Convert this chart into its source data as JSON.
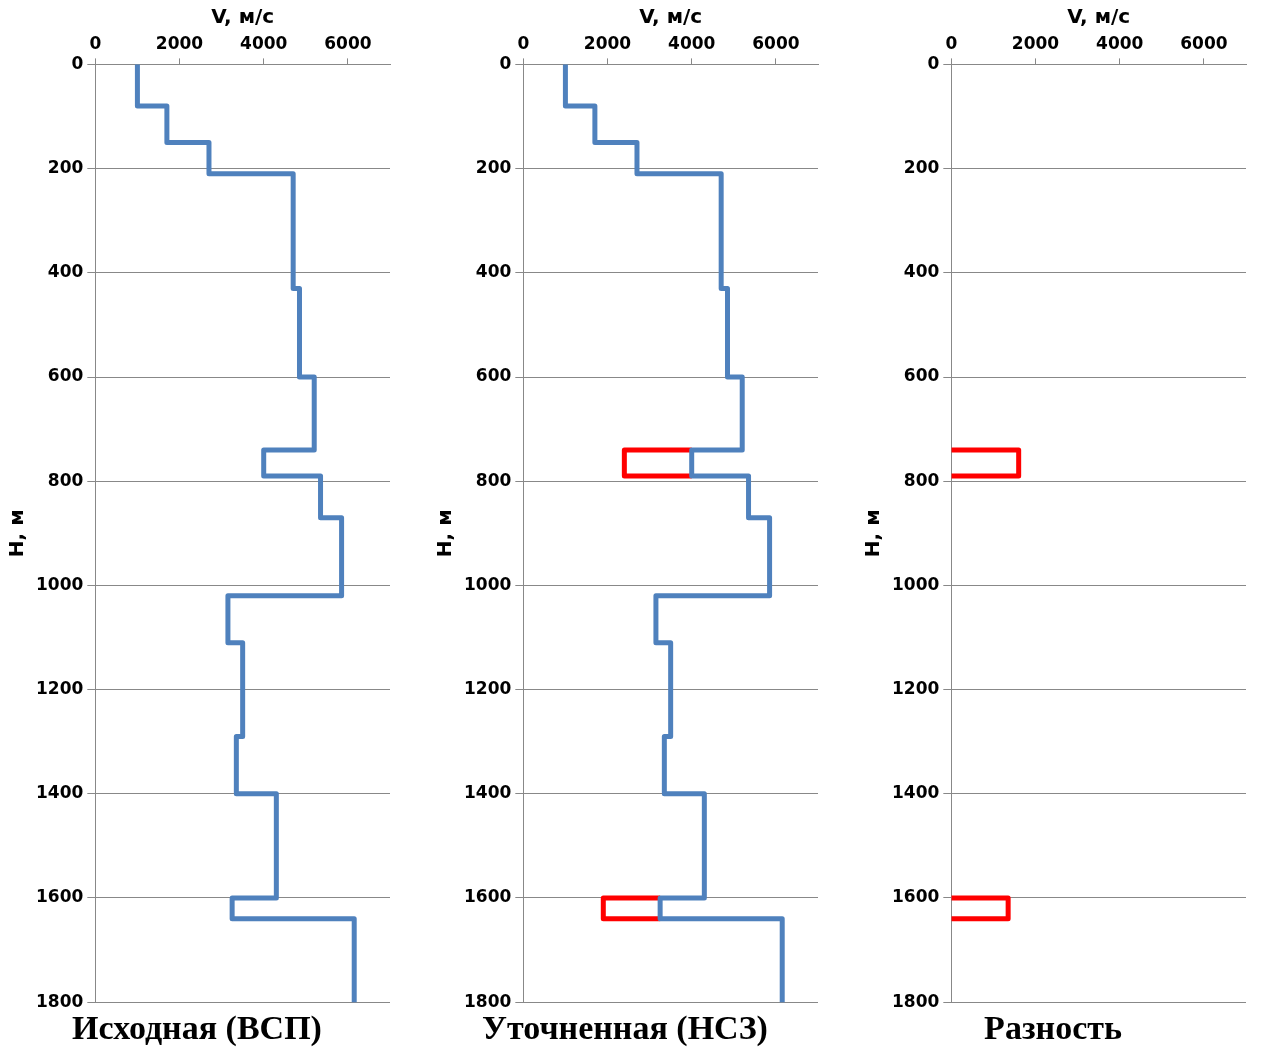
{
  "chart_data": [
    {
      "type": "line",
      "title": "Исходная (ВСП)",
      "xlabel": "V, м/с",
      "ylabel": "H, м",
      "xlim": [
        0,
        7000
      ],
      "xticks": [
        0,
        2000,
        4000,
        6000
      ],
      "ylim": [
        1800,
        0
      ],
      "yticks": [
        0,
        200,
        400,
        600,
        800,
        1000,
        1200,
        1400,
        1600,
        1800
      ],
      "grid": "y",
      "legend": false,
      "series": [
        {
          "color": "#4f81bd",
          "x": [
            1000,
            1000,
            1700,
            1700,
            2700,
            2700,
            4700,
            4700,
            4850,
            4850,
            5200,
            5200,
            4000,
            4000,
            5350,
            5350,
            5850,
            5850,
            3150,
            3150,
            3500,
            3500,
            3350,
            3350,
            4300,
            4300,
            3250,
            3250,
            6150,
            6150
          ],
          "values": [
            0,
            80,
            80,
            150,
            150,
            210,
            210,
            430,
            430,
            600,
            600,
            740,
            740,
            790,
            790,
            870,
            870,
            1020,
            1020,
            1110,
            1110,
            1290,
            1290,
            1400,
            1400,
            1600,
            1600,
            1640,
            1640,
            1800
          ]
        }
      ]
    },
    {
      "type": "line",
      "title": "Уточненная (НСЗ)",
      "xlabel": "V, м/с",
      "ylabel": "H, м",
      "xlim": [
        0,
        7000
      ],
      "xticks": [
        0,
        2000,
        4000,
        6000
      ],
      "ylim": [
        1800,
        0
      ],
      "yticks": [
        0,
        200,
        400,
        600,
        800,
        1000,
        1200,
        1400,
        1600,
        1800
      ],
      "grid": "y",
      "legend": false,
      "series": [
        {
          "color": "#4f81bd",
          "x": [
            1000,
            1000,
            1700,
            1700,
            2700,
            2700,
            4700,
            4700,
            4850,
            4850,
            5200,
            5200,
            4000,
            4000,
            5350,
            5350,
            5850,
            5850,
            3150,
            3150,
            3500,
            3500,
            3350,
            3350,
            4300,
            4300,
            3250,
            3250,
            6150,
            6150
          ],
          "values": [
            0,
            80,
            80,
            150,
            150,
            210,
            210,
            430,
            430,
            600,
            600,
            740,
            740,
            790,
            790,
            870,
            870,
            1020,
            1020,
            1110,
            1110,
            1290,
            1290,
            1400,
            1400,
            1600,
            1600,
            1640,
            1640,
            1800
          ]
        },
        {
          "color": "#ff0000",
          "x": [
            4000,
            2400,
            2400,
            4000
          ],
          "values": [
            740,
            740,
            790,
            790
          ]
        },
        {
          "color": "#ff0000",
          "x": [
            3250,
            1900,
            1900,
            3250
          ],
          "values": [
            1600,
            1600,
            1640,
            1640
          ]
        }
      ]
    },
    {
      "type": "line",
      "title": "Разность",
      "xlabel": "V, м/с",
      "ylabel": "H, м",
      "xlim": [
        0,
        7000
      ],
      "xticks": [
        0,
        2000,
        4000,
        6000
      ],
      "ylim": [
        1800,
        0
      ],
      "yticks": [
        0,
        200,
        400,
        600,
        800,
        1000,
        1200,
        1400,
        1600,
        1800
      ],
      "grid": "y",
      "legend": false,
      "series": [
        {
          "color": "#ff0000",
          "x": [
            0,
            1600,
            1600,
            0
          ],
          "values": [
            740,
            740,
            790,
            790
          ]
        },
        {
          "color": "#ff0000",
          "x": [
            0,
            1350,
            1350,
            0
          ],
          "values": [
            1600,
            1600,
            1640,
            1640
          ]
        }
      ]
    }
  ]
}
